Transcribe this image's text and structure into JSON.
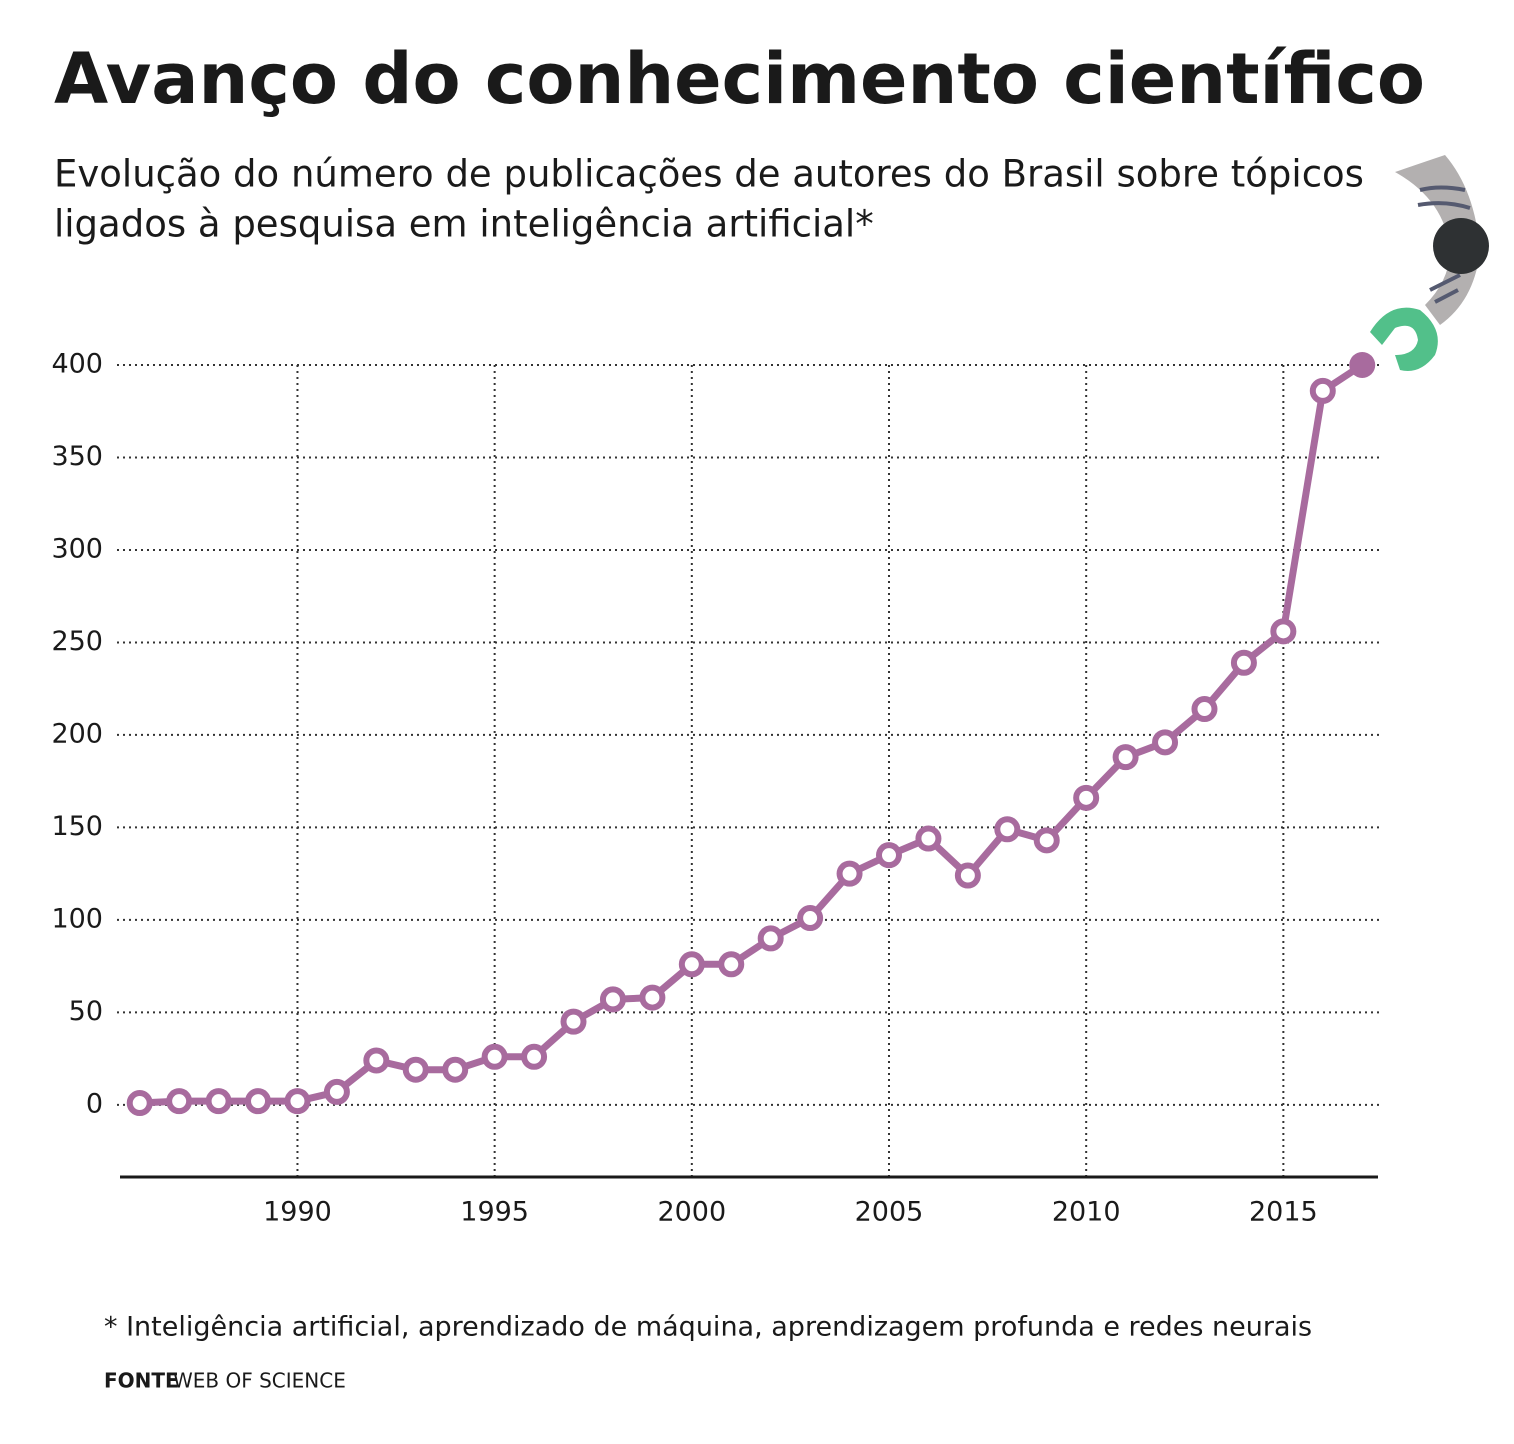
{
  "chart_data": {
    "type": "line",
    "title": "Avanço do conhecimento científico",
    "subtitle": [
      "Evolução do número de publicações de autores do Brasil sobre tópicos",
      "ligados à pesquisa em inteligência artificial*"
    ],
    "x": [
      1986,
      1987,
      1988,
      1989,
      1990,
      1991,
      1992,
      1993,
      1994,
      1995,
      1996,
      1997,
      1998,
      1999,
      2000,
      2001,
      2002,
      2003,
      2004,
      2005,
      2006,
      2007,
      2008,
      2009,
      2010,
      2011,
      2012,
      2013,
      2014,
      2015,
      2016,
      2017
    ],
    "values": [
      1,
      2,
      2,
      2,
      2,
      7,
      24,
      19,
      19,
      26,
      26,
      45,
      57,
      58,
      76,
      76,
      90,
      101,
      125,
      135,
      144,
      124,
      149,
      143,
      166,
      188,
      196,
      214,
      239,
      256,
      386,
      400
    ],
    "color": "#a86b9e",
    "highlight_last": true,
    "xlim": [
      1985.5,
      2017.4
    ],
    "xticks": [
      1990,
      1995,
      2000,
      2005,
      2010,
      2015
    ],
    "ylim": [
      -39,
      420
    ],
    "yticks": [
      0,
      50,
      100,
      150,
      200,
      250,
      300,
      350,
      400
    ],
    "grid": true,
    "footnote": "* Inteligência artificial, aprendizado de máquina, aprendizagem profunda e redes neurais",
    "source_label": "FONTE",
    "source": "WEB OF SCIENCE"
  }
}
